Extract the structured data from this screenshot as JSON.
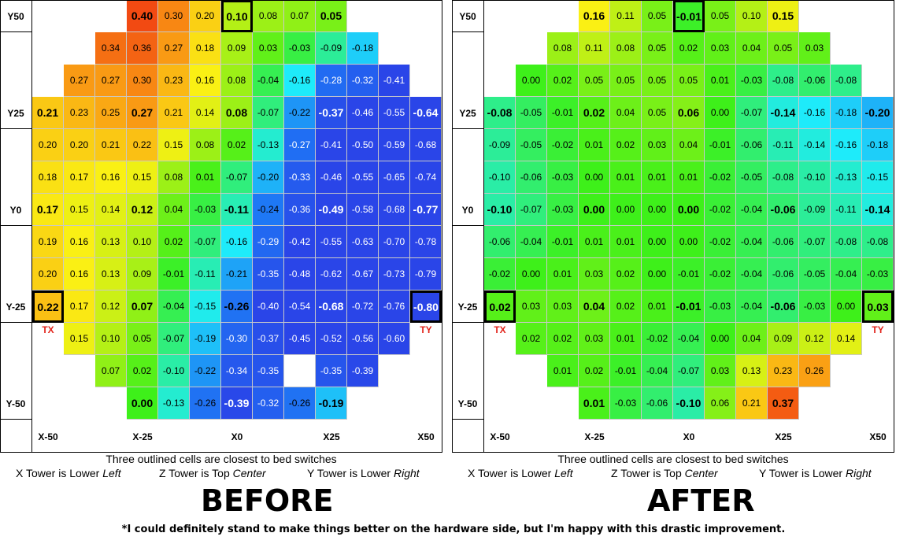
{
  "charts": [
    {
      "id": "before",
      "title": "BEFORE",
      "outline_note": "Three outlined cells are closest to bed switches",
      "towers": {
        "x_text": "X Tower is Lower",
        "x_dir": "Left",
        "z_text": "Z Tower is Top",
        "z_dir": "Center",
        "y_text": "Y Tower is Lower",
        "y_dir": "Right"
      },
      "tower_labels": {
        "left": "TX",
        "right": "TY"
      }
    },
    {
      "id": "after",
      "title": "AFTER",
      "outline_note": "Three outlined cells are closest to bed switches",
      "towers": {
        "x_text": "X Tower is Lower",
        "x_dir": "Left",
        "z_text": "Z Tower is Top",
        "z_dir": "Center",
        "y_text": "Y Tower is Lower",
        "y_dir": "Right"
      },
      "tower_labels": {
        "left": "TX",
        "right": "TY"
      }
    }
  ],
  "footnote": "*I could definitely stand to make things better on the hardware side, but I'm happy with this drastic improvement.",
  "chart_data": [
    {
      "type": "heatmap",
      "title": "BEFORE",
      "row_labels": [
        "Y50",
        "",
        "",
        "Y25",
        "",
        "",
        "Y0",
        "",
        "",
        "Y-25",
        "",
        "",
        "Y-50"
      ],
      "col_labels": [
        "X-50",
        "",
        "",
        "X-25",
        "",
        "",
        "X0",
        "",
        "",
        "X25",
        "",
        "",
        "X50"
      ],
      "values": [
        [
          null,
          null,
          null,
          0.4,
          0.3,
          0.2,
          0.1,
          0.08,
          0.07,
          0.05,
          null,
          null,
          null
        ],
        [
          null,
          null,
          0.34,
          0.36,
          0.27,
          0.18,
          0.09,
          0.03,
          -0.03,
          -0.09,
          -0.18,
          null,
          null
        ],
        [
          null,
          0.27,
          0.27,
          0.3,
          0.23,
          0.16,
          0.08,
          -0.04,
          -0.16,
          -0.28,
          -0.32,
          -0.41,
          null
        ],
        [
          0.21,
          0.23,
          0.25,
          0.27,
          0.21,
          0.14,
          0.08,
          -0.07,
          -0.22,
          -0.37,
          -0.46,
          -0.55,
          -0.64
        ],
        [
          0.2,
          0.2,
          0.21,
          0.22,
          0.15,
          0.08,
          0.02,
          -0.13,
          -0.27,
          -0.41,
          -0.5,
          -0.59,
          -0.68
        ],
        [
          0.18,
          0.17,
          0.16,
          0.15,
          0.08,
          0.01,
          -0.07,
          -0.2,
          -0.33,
          -0.46,
          -0.55,
          -0.65,
          -0.74
        ],
        [
          0.17,
          0.15,
          0.14,
          0.12,
          0.04,
          -0.03,
          -0.11,
          -0.24,
          -0.36,
          -0.49,
          -0.58,
          -0.68,
          -0.77
        ],
        [
          0.19,
          0.16,
          0.13,
          0.1,
          0.02,
          -0.07,
          -0.16,
          -0.29,
          -0.42,
          -0.55,
          -0.63,
          -0.7,
          -0.78
        ],
        [
          0.2,
          0.16,
          0.13,
          0.09,
          -0.01,
          -0.11,
          -0.21,
          -0.35,
          -0.48,
          -0.62,
          -0.67,
          -0.73,
          -0.79
        ],
        [
          0.22,
          0.17,
          0.12,
          0.07,
          -0.04,
          -0.15,
          -0.26,
          -0.4,
          -0.54,
          -0.68,
          -0.72,
          -0.76,
          -0.8
        ],
        [
          null,
          0.15,
          0.1,
          0.05,
          -0.07,
          -0.19,
          -0.3,
          -0.37,
          -0.45,
          -0.52,
          -0.56,
          -0.6,
          null
        ],
        [
          null,
          null,
          0.07,
          0.02,
          -0.1,
          -0.22,
          -0.34,
          -0.35,
          -0.35,
          -0.35,
          -0.39,
          null,
          null
        ],
        [
          null,
          null,
          null,
          0.0,
          -0.13,
          -0.26,
          -0.39,
          -0.32,
          -0.26,
          -0.19,
          null,
          null,
          null
        ]
      ],
      "white_cells": [
        [
          11,
          8
        ]
      ],
      "outlined_cells": [
        [
          0,
          6
        ],
        [
          9,
          0
        ],
        [
          9,
          12
        ]
      ],
      "color_scale": {
        "min": -0.4,
        "max": 0.4,
        "low": "#2a45e8",
        "mid": "#3ef01a",
        "high": "#f24a12"
      }
    },
    {
      "type": "heatmap",
      "title": "AFTER",
      "row_labels": [
        "Y50",
        "",
        "",
        "Y25",
        "",
        "",
        "Y0",
        "",
        "",
        "Y-25",
        "",
        "",
        "Y-50"
      ],
      "col_labels": [
        "X-50",
        "",
        "",
        "X-25",
        "",
        "",
        "X0",
        "",
        "",
        "X25",
        "",
        "",
        "X50"
      ],
      "values": [
        [
          null,
          null,
          null,
          0.16,
          0.11,
          0.05,
          -0.01,
          0.05,
          0.1,
          0.15,
          null,
          null,
          null
        ],
        [
          null,
          null,
          0.08,
          0.11,
          0.08,
          0.05,
          0.02,
          0.03,
          0.04,
          0.05,
          0.03,
          null,
          null
        ],
        [
          null,
          0.0,
          0.02,
          0.05,
          0.05,
          0.05,
          0.05,
          0.01,
          -0.03,
          -0.08,
          -0.06,
          -0.08,
          null
        ],
        [
          -0.08,
          -0.05,
          -0.01,
          0.02,
          0.04,
          0.05,
          0.06,
          0.0,
          -0.07,
          -0.14,
          -0.16,
          -0.18,
          -0.2
        ],
        [
          -0.09,
          -0.05,
          -0.02,
          0.01,
          0.02,
          0.03,
          0.04,
          -0.01,
          -0.06,
          -0.11,
          -0.14,
          -0.16,
          -0.18
        ],
        [
          -0.1,
          -0.06,
          -0.03,
          0.0,
          0.01,
          0.01,
          0.01,
          -0.02,
          -0.05,
          -0.08,
          -0.1,
          -0.13,
          -0.15
        ],
        [
          -0.1,
          -0.07,
          -0.03,
          0.0,
          0.0,
          0.0,
          0.0,
          -0.02,
          -0.04,
          -0.06,
          -0.09,
          -0.11,
          -0.14
        ],
        [
          -0.06,
          -0.04,
          -0.01,
          0.01,
          0.01,
          0.0,
          0.0,
          -0.02,
          -0.04,
          -0.06,
          -0.07,
          -0.08,
          -0.08
        ],
        [
          -0.02,
          0.0,
          0.01,
          0.03,
          0.02,
          0.0,
          -0.01,
          -0.02,
          -0.04,
          -0.06,
          -0.05,
          -0.04,
          -0.03
        ],
        [
          0.02,
          0.03,
          0.03,
          0.04,
          0.02,
          0.01,
          -0.01,
          -0.03,
          -0.04,
          -0.06,
          -0.03,
          0.0,
          0.03
        ],
        [
          null,
          0.02,
          0.02,
          0.03,
          0.01,
          -0.02,
          -0.04,
          0.0,
          0.04,
          0.09,
          0.12,
          0.14,
          null
        ],
        [
          null,
          null,
          0.01,
          0.02,
          -0.01,
          -0.04,
          -0.07,
          0.03,
          0.13,
          0.23,
          0.26,
          null,
          null
        ],
        [
          null,
          null,
          null,
          0.01,
          -0.03,
          -0.06,
          -0.1,
          0.06,
          0.21,
          0.37,
          null,
          null,
          null
        ]
      ],
      "white_cells": [],
      "outlined_cells": [
        [
          0,
          6
        ],
        [
          9,
          0
        ],
        [
          9,
          12
        ]
      ],
      "color_scale": {
        "min": -0.4,
        "max": 0.4,
        "low": "#2a45e8",
        "mid": "#3ef01a",
        "high": "#f24a12"
      }
    }
  ]
}
